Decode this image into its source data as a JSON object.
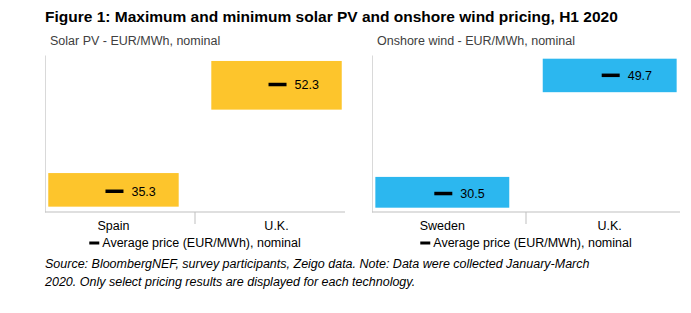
{
  "title": "Figure 1: Maximum and minimum solar PV and onshore wind pricing, H1 2020",
  "note": [
    "Source: BloombergNEF, survey participants, Zeigo data. Note: Data were collected January-March",
    "2020. Only select pricing results are displayed for each technology."
  ],
  "chart_data": [
    {
      "type": "range",
      "title": "Solar PV - EUR/MWh, nominal",
      "categories": [
        "Spain",
        "U.K."
      ],
      "low": [
        32.85,
        48.3
      ],
      "high": [
        38.2,
        56.05
      ],
      "color": "#fdc52c",
      "series": [
        {
          "name": "Average price (EUR/MWh), nominal",
          "color": "#000000",
          "marker": "dash",
          "values": [
            35.3,
            52.3
          ]
        }
      ],
      "ylim": [
        32,
        57
      ],
      "yticks": [],
      "data_labels": true,
      "tick_labels": "x",
      "legend": "bottom"
    },
    {
      "type": "range",
      "title": "Onshore wind - EUR/MWh, nominal",
      "categories": [
        "Sweden",
        "U.K."
      ],
      "low": [
        28.2,
        46.96
      ],
      "high": [
        33.2,
        52.4
      ],
      "color": "#2cb7ef",
      "series": [
        {
          "name": "Average price (EUR/MWh), nominal",
          "color": "#000000",
          "marker": "dash",
          "values": [
            30.5,
            49.7
          ]
        }
      ],
      "ylim": [
        27.5,
        53
      ],
      "yticks": [],
      "data_labels": true,
      "tick_labels": "x",
      "legend": "bottom"
    }
  ]
}
